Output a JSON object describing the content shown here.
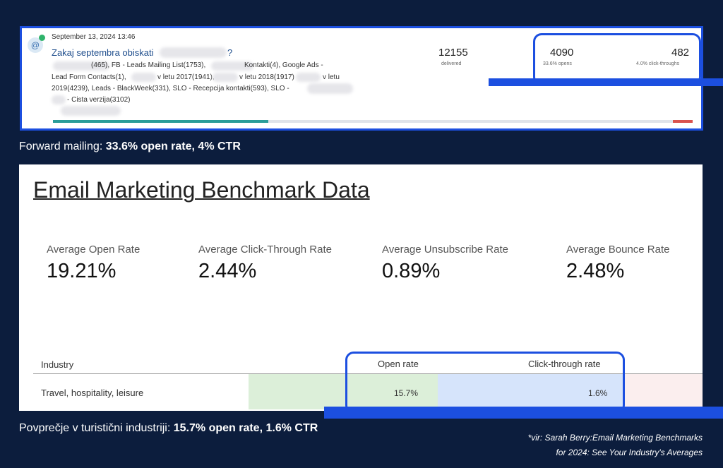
{
  "email": {
    "date": "September 13, 2024 13:46",
    "subject": "Zakaj septembra obiskati",
    "subject_end": "?",
    "lists": [
      "(465), FB - Leads Mailing List(1753),",
      "Kontakti(4), Google Ads -",
      "Lead Form Contacts(1),",
      "v letu 2017(1941),",
      "v letu 2018(1917)",
      "v letu",
      "2019(4239), Leads - BlackWeek(331), SLO - Recepcija kontakti(593), SLO -",
      "- Cista verzija(3102)"
    ],
    "stats": [
      {
        "value": "12155",
        "label": "delivered"
      },
      {
        "value": "4090",
        "label": "33.6% opens"
      },
      {
        "value": "482",
        "label": "4.0% click-throughs"
      }
    ]
  },
  "caption_top": {
    "text": "Forward mailing: ",
    "bold": "33.6% open rate, 4% CTR"
  },
  "benchmark": {
    "title": "Email Marketing Benchmark Data",
    "metrics": [
      {
        "label": "Average Open Rate",
        "value": "19.21%"
      },
      {
        "label": "Average Click-Through Rate",
        "value": "2.44%"
      },
      {
        "label": "Average Unsubscribe Rate",
        "value": "0.89%"
      },
      {
        "label": "Average Bounce Rate",
        "value": "2.48%"
      }
    ],
    "table": {
      "header": [
        "Industry",
        "Open rate",
        "Click-through rate"
      ],
      "rows": [
        [
          "Travel, hospitality, leisure",
          "15.7%",
          "1.6%"
        ]
      ]
    }
  },
  "caption_bottom": {
    "text": "Povprečje v turistični industriji: ",
    "bold": "15.7% open rate, 1.6% CTR"
  },
  "source": [
    "*vir: Sarah Berry:Email Marketing Benchmarks",
    "for 2024: See Your Industry's Averages"
  ]
}
